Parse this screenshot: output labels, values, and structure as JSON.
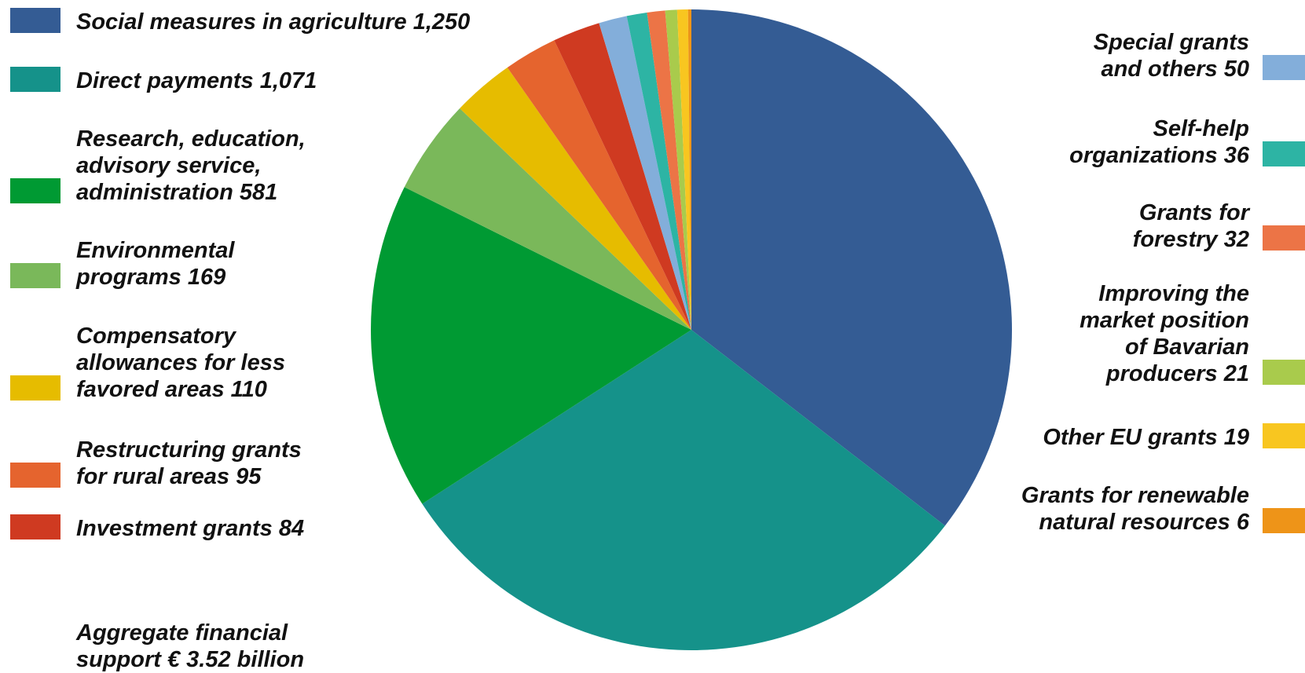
{
  "chart_data": {
    "type": "pie",
    "title": "",
    "total_label": [
      "Aggregate financial",
      "support € 3.52 billion"
    ],
    "slices": [
      {
        "name": "Social measures in agriculture",
        "value": 1250,
        "color": "#345C94",
        "label_lines": [
          "Social measures in agriculture 1,250"
        ],
        "side": "left"
      },
      {
        "name": "Direct payments",
        "value": 1071,
        "color": "#15928A",
        "label_lines": [
          "Direct payments 1,071"
        ],
        "side": "left"
      },
      {
        "name": "Research, education, advisory service, administration",
        "value": 581,
        "color": "#009A33",
        "label_lines": [
          "Research, education,",
          "advisory service,",
          "administration 581"
        ],
        "side": "left"
      },
      {
        "name": "Environmental programs",
        "value": 169,
        "color": "#7AB85A",
        "label_lines": [
          "Environmental",
          "programs 169"
        ],
        "side": "left"
      },
      {
        "name": "Compensatory allowances for less favored areas",
        "value": 110,
        "color": "#E6BC00",
        "label_lines": [
          "Compensatory",
          "allowances for less",
          "favored areas 110"
        ],
        "side": "left"
      },
      {
        "name": "Restructuring grants for rural areas",
        "value": 95,
        "color": "#E5642E",
        "label_lines": [
          "Restructuring grants",
          "for rural areas 95"
        ],
        "side": "left"
      },
      {
        "name": "Investment grants",
        "value": 84,
        "color": "#CF3A21",
        "label_lines": [
          "Investment grants 84"
        ],
        "side": "left"
      },
      {
        "name": "Special grants and others",
        "value": 50,
        "color": "#83AEDA",
        "label_lines": [
          "Special grants",
          "and others 50"
        ],
        "side": "right"
      },
      {
        "name": "Self-help organizations",
        "value": 36,
        "color": "#2DB4A4",
        "label_lines": [
          "Self-help",
          "organizations 36"
        ],
        "side": "right"
      },
      {
        "name": "Grants for forestry",
        "value": 32,
        "color": "#EC7446",
        "label_lines": [
          "Grants for",
          "forestry 32"
        ],
        "side": "right"
      },
      {
        "name": "Improving the market position of Bavarian producers",
        "value": 21,
        "color": "#A9CB4C",
        "label_lines": [
          "Improving the",
          "market position",
          "of Bavarian",
          "producers 21"
        ],
        "side": "right"
      },
      {
        "name": "Other EU grants",
        "value": 19,
        "color": "#F8C620",
        "label_lines": [
          "Other EU grants 19"
        ],
        "side": "right"
      },
      {
        "name": "Grants for renewable natural resources",
        "value": 6,
        "color": "#EE9418",
        "label_lines": [
          "Grants for renewable",
          "natural resources 6"
        ],
        "side": "right"
      }
    ]
  }
}
